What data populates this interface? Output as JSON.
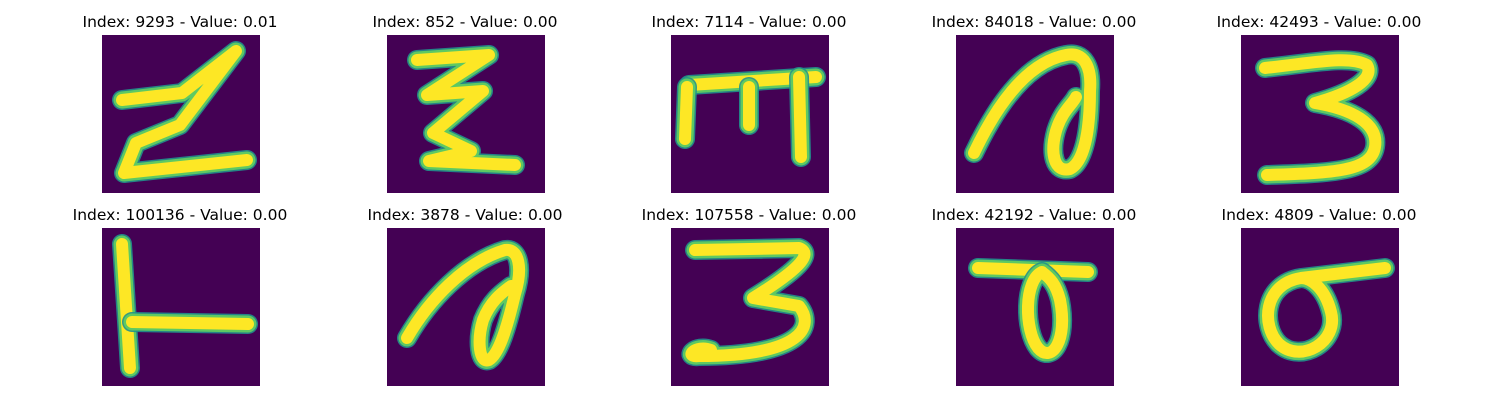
{
  "figure": {
    "colormap": "viridis",
    "background_color": "#440154",
    "stroke_color": "#fde725",
    "edge_color": "#21918c",
    "panels": [
      {
        "title": "Index: 9293 - Value: 0.01",
        "glyph": "z-shape"
      },
      {
        "title": "Index: 852 - Value: 0.00",
        "glyph": "double-z-shape"
      },
      {
        "title": "Index: 7114 - Value: 0.00",
        "glyph": "m-shape"
      },
      {
        "title": "Index: 84018 - Value: 0.00",
        "glyph": "loop-shape"
      },
      {
        "title": "Index: 42493 - Value: 0.00",
        "glyph": "three-shape"
      },
      {
        "title": "Index: 100136 - Value: 0.00",
        "glyph": "l-shape"
      },
      {
        "title": "Index: 3878 - Value: 0.00",
        "glyph": "loop-shape"
      },
      {
        "title": "Index: 107558 - Value: 0.00",
        "glyph": "three-shape"
      },
      {
        "title": "Index: 42192 - Value: 0.00",
        "glyph": "looped-t-shape"
      },
      {
        "title": "Index: 4809 - Value: 0.00",
        "glyph": "sigma-shape"
      }
    ]
  }
}
